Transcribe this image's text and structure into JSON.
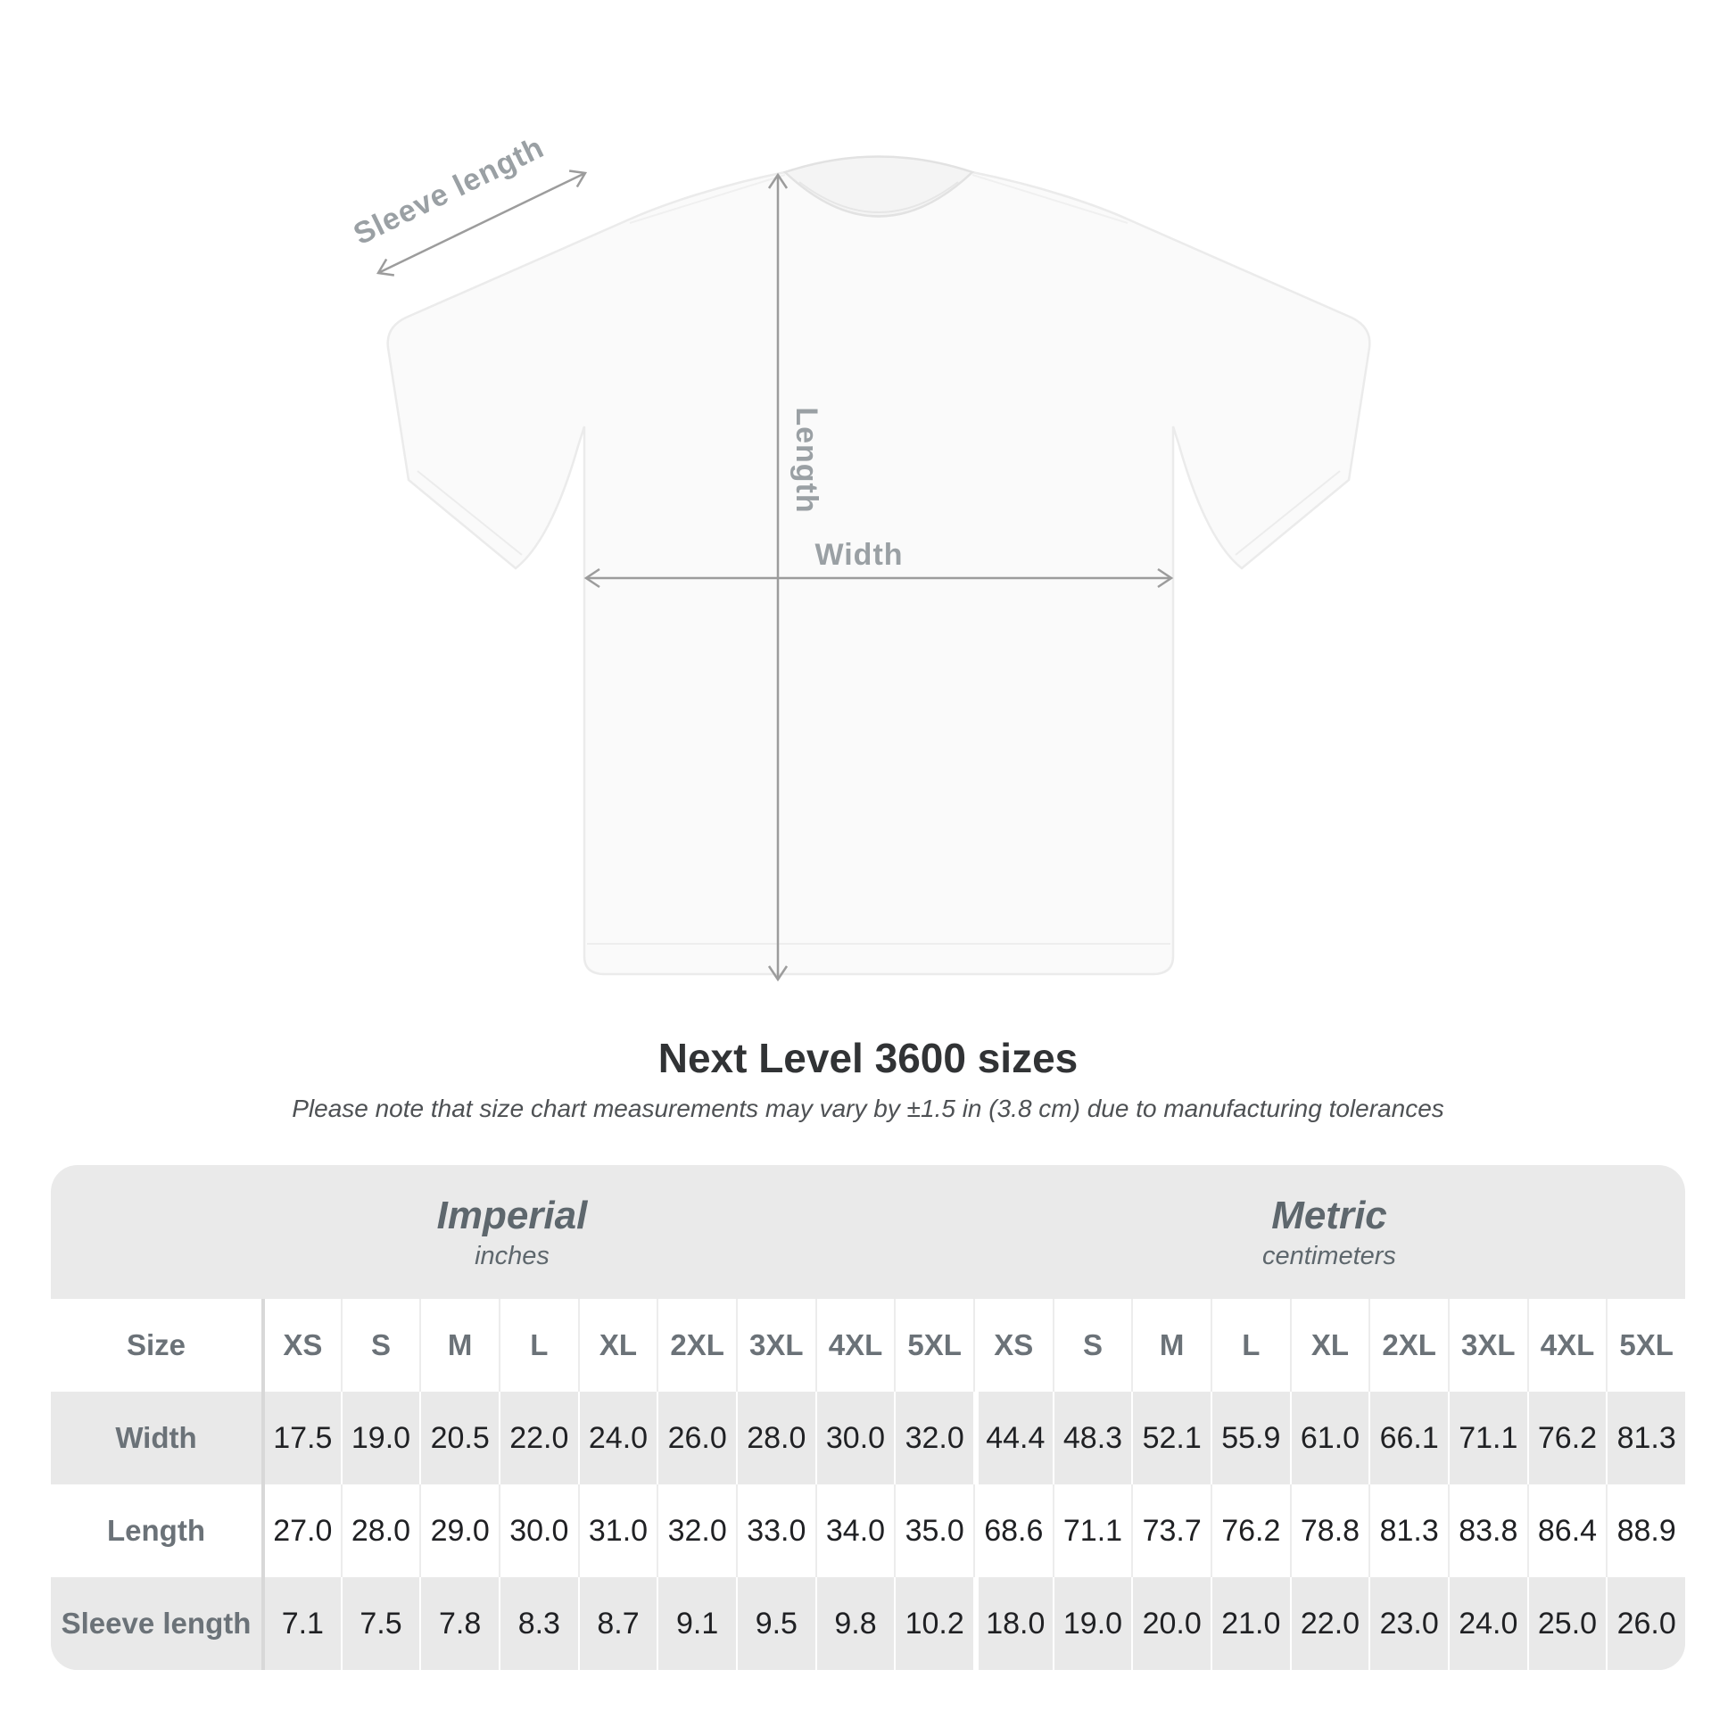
{
  "diagram": {
    "labels": {
      "sleeve_length": "Sleeve length",
      "length": "Length",
      "width": "Width"
    },
    "arrow_color": "#9c9c9c",
    "label_color": "#9aa0a4"
  },
  "header": {
    "title": "Next Level 3600 sizes",
    "subtitle": "Please note that size chart measurements may vary by ±1.5 in (3.8 cm) due to manufacturing tolerances"
  },
  "table": {
    "unit_groups": [
      {
        "label": "Imperial",
        "sublabel": "inches"
      },
      {
        "label": "Metric",
        "sublabel": "centimeters"
      }
    ],
    "size_header": "Size",
    "sizes": [
      "XS",
      "S",
      "M",
      "L",
      "XL",
      "2XL",
      "3XL",
      "4XL",
      "5XL"
    ],
    "rows": [
      {
        "label": "Width",
        "imperial": [
          "17.5",
          "19.0",
          "20.5",
          "22.0",
          "24.0",
          "26.0",
          "28.0",
          "30.0",
          "32.0"
        ],
        "metric": [
          "44.4",
          "48.3",
          "52.1",
          "55.9",
          "61.0",
          "66.1",
          "71.1",
          "76.2",
          "81.3"
        ]
      },
      {
        "label": "Length",
        "imperial": [
          "27.0",
          "28.0",
          "29.0",
          "30.0",
          "31.0",
          "32.0",
          "33.0",
          "34.0",
          "35.0"
        ],
        "metric": [
          "68.6",
          "71.1",
          "73.7",
          "76.2",
          "78.8",
          "81.3",
          "83.8",
          "86.4",
          "88.9"
        ]
      },
      {
        "label": "Sleeve length",
        "imperial": [
          "7.1",
          "7.5",
          "7.8",
          "8.3",
          "8.7",
          "9.1",
          "9.5",
          "9.8",
          "10.2"
        ],
        "metric": [
          "18.0",
          "19.0",
          "20.0",
          "21.0",
          "22.0",
          "23.0",
          "24.0",
          "25.0",
          "26.0"
        ]
      }
    ]
  }
}
